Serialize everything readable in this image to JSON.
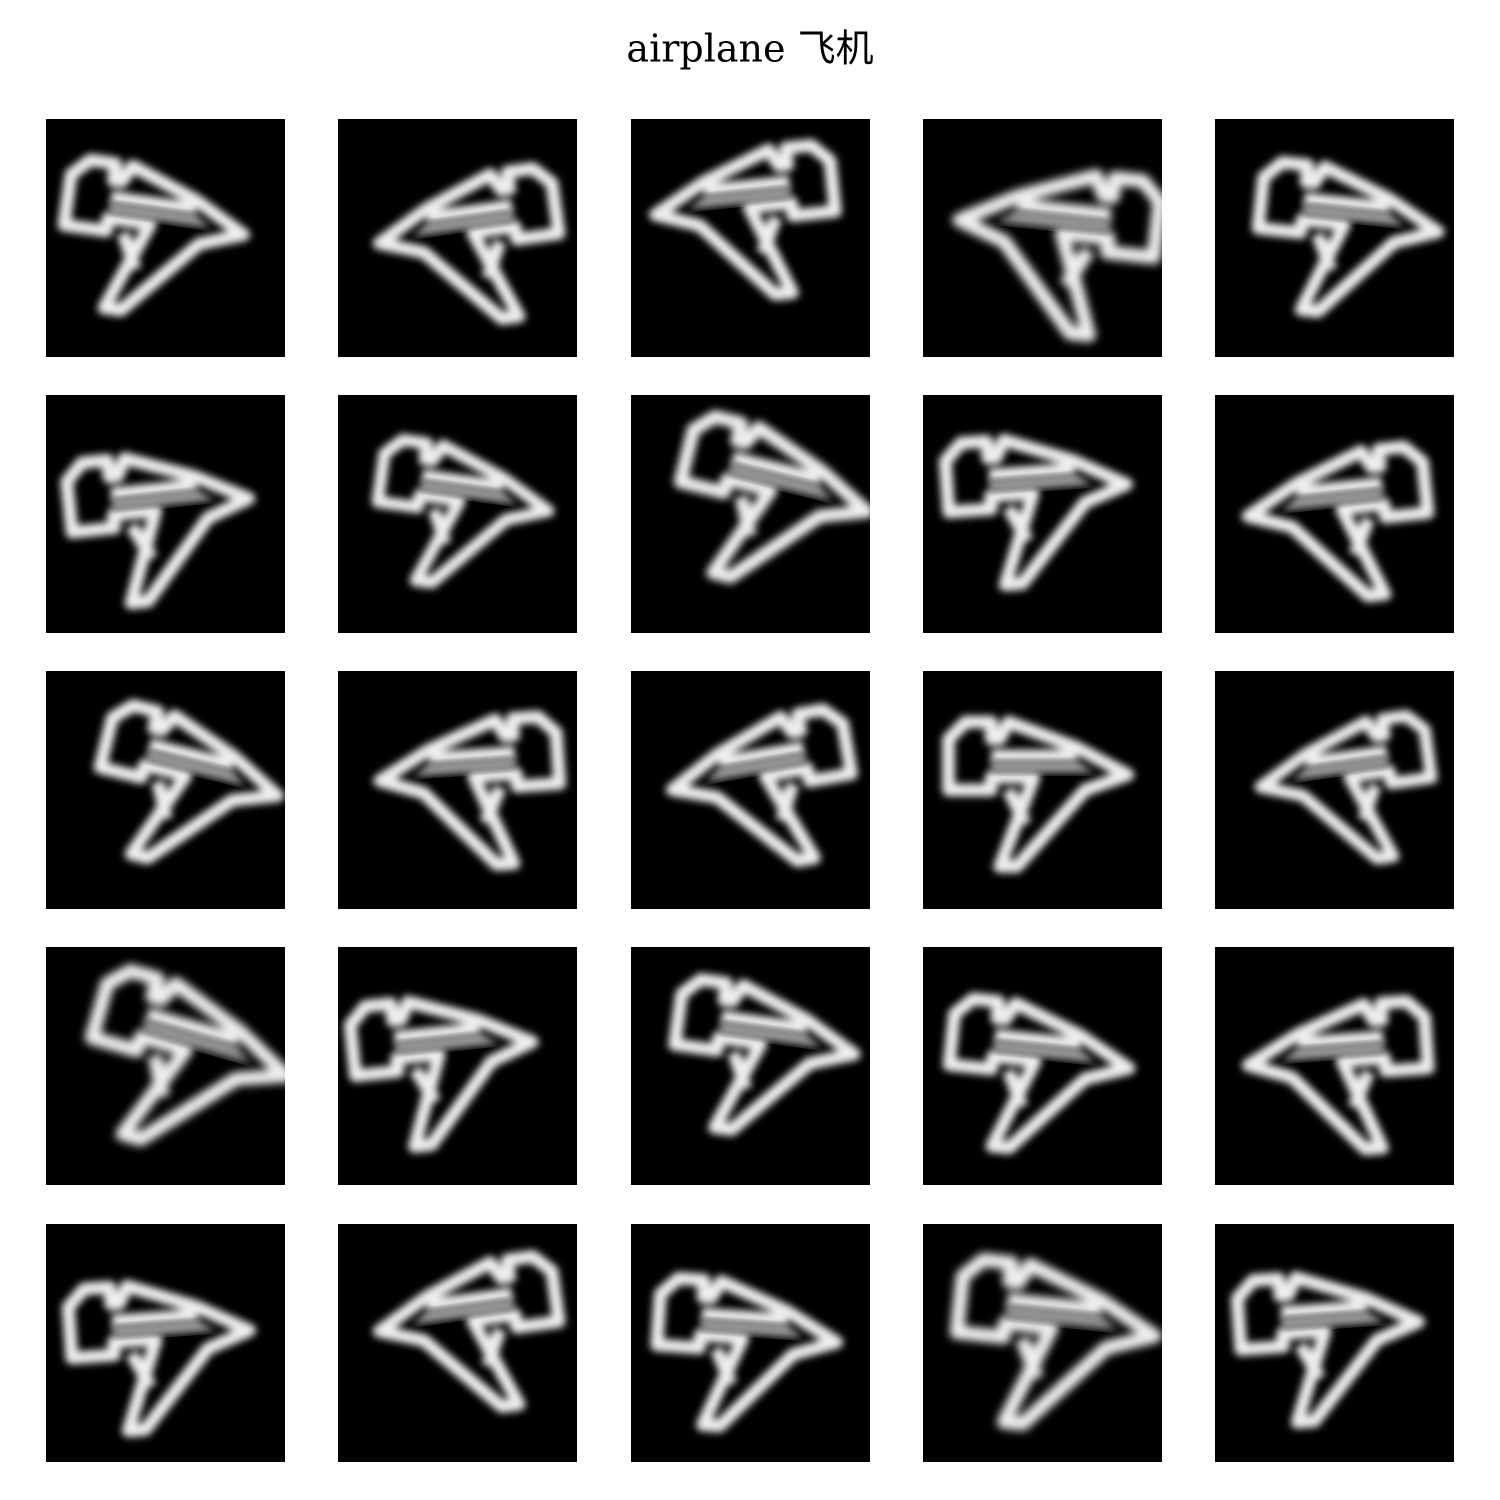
{
  "header": {
    "title": "airplane 飞机"
  }
}
